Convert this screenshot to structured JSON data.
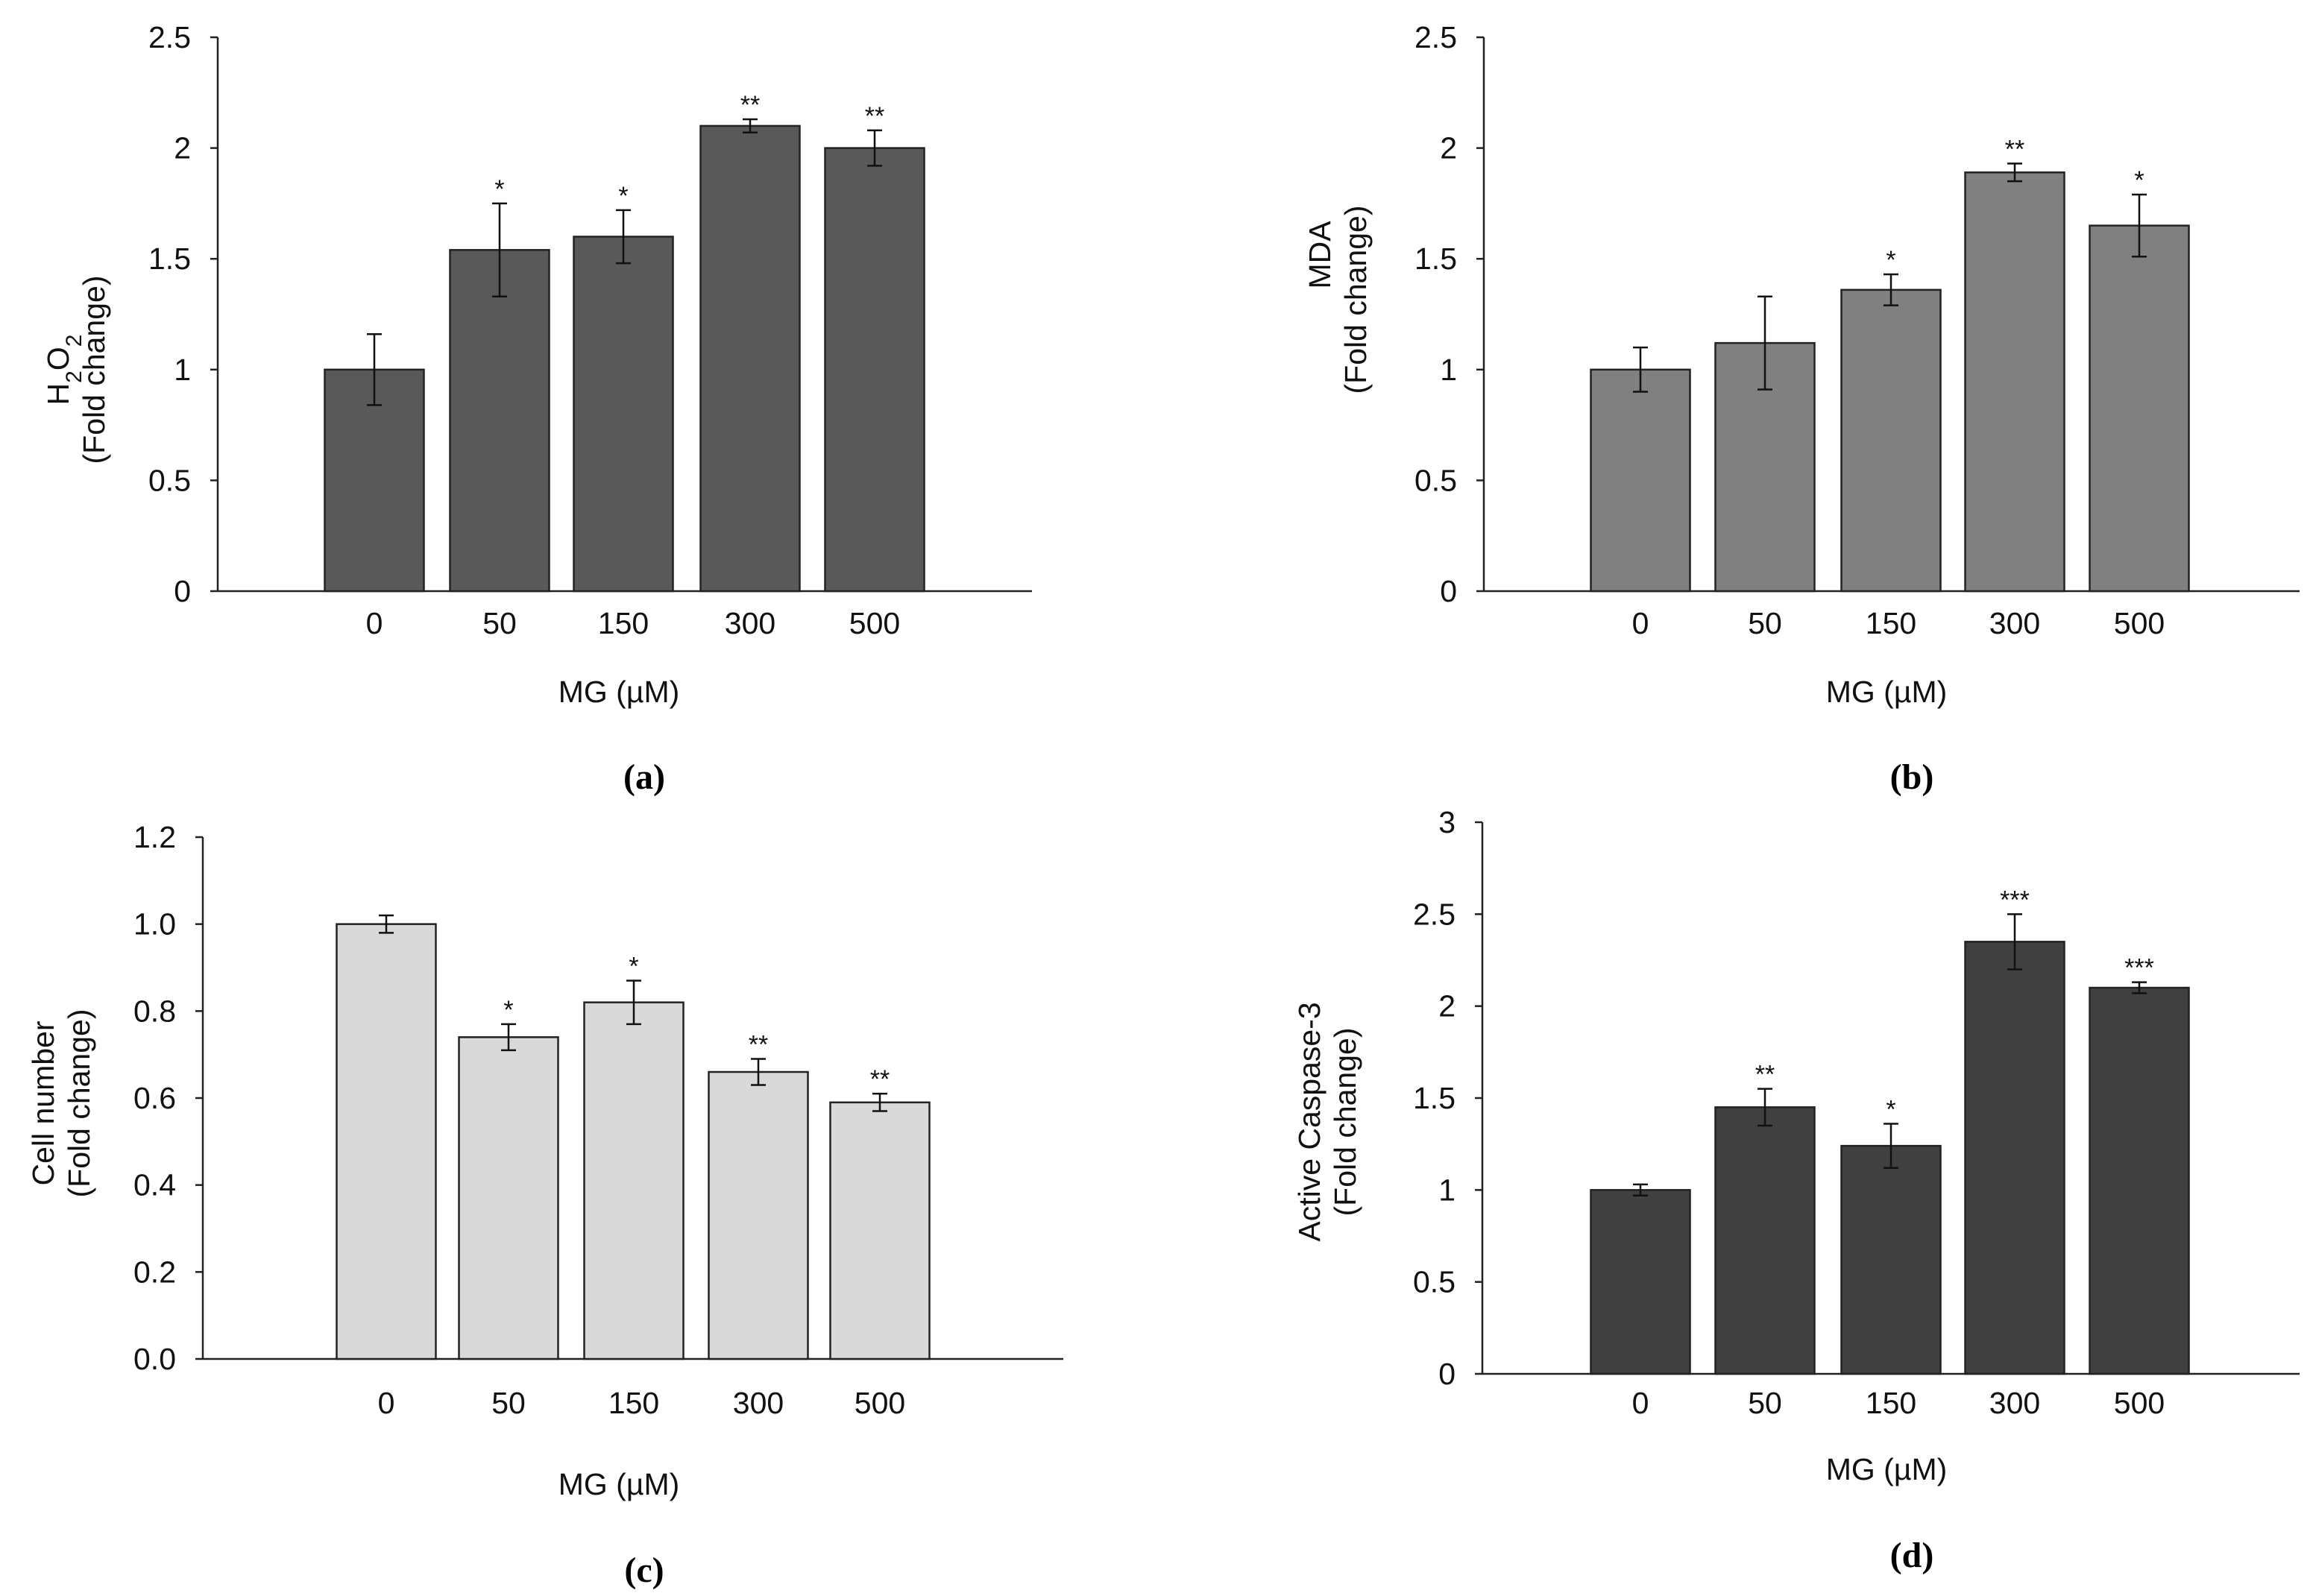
{
  "chart_data": [
    {
      "id": "a",
      "type": "bar",
      "panel_label": "(a)",
      "ylabel_main": "H",
      "ylabel_sub1": "2",
      "ylabel_mid": "O",
      "ylabel_sub2": "2",
      "ylabel_line2": "(Fold change)",
      "xlabel": "MG (µM)",
      "categories": [
        "0",
        "50",
        "150",
        "300",
        "500"
      ],
      "values": [
        1.0,
        1.54,
        1.6,
        2.1,
        2.0
      ],
      "errors": [
        0.16,
        0.21,
        0.12,
        0.03,
        0.08
      ],
      "significance": [
        "",
        "*",
        "*",
        "**",
        "**"
      ],
      "ylim": [
        0,
        2.5
      ],
      "yticks": [
        "0",
        "0.5",
        "1",
        "1.5",
        "2",
        "2.5"
      ],
      "bar_color": "#595959"
    },
    {
      "id": "b",
      "type": "bar",
      "panel_label": "(b)",
      "ylabel_line1": "MDA",
      "ylabel_line2": "(Fold change)",
      "xlabel": "MG (µM)",
      "categories": [
        "0",
        "50",
        "150",
        "300",
        "500"
      ],
      "values": [
        1.0,
        1.12,
        1.36,
        1.89,
        1.65
      ],
      "errors": [
        0.1,
        0.21,
        0.07,
        0.04,
        0.14
      ],
      "significance": [
        "",
        "",
        "*",
        "**",
        "*"
      ],
      "ylim": [
        0,
        2.5
      ],
      "yticks": [
        "0",
        "0.5",
        "1",
        "1.5",
        "2",
        "2.5"
      ],
      "bar_color": "#808080"
    },
    {
      "id": "c",
      "type": "bar",
      "panel_label": "(c)",
      "ylabel_line1": "Cell number",
      "ylabel_line2": "(Fold change)",
      "xlabel": "MG (µM)",
      "categories": [
        "0",
        "50",
        "150",
        "300",
        "500"
      ],
      "values": [
        1.0,
        0.74,
        0.82,
        0.66,
        0.59
      ],
      "errors": [
        0.02,
        0.03,
        0.05,
        0.03,
        0.02
      ],
      "significance": [
        "",
        "*",
        "*",
        "**",
        "**"
      ],
      "ylim": [
        0,
        1.2
      ],
      "yticks": [
        "0.0",
        "0.2",
        "0.4",
        "0.6",
        "0.8",
        "1.0",
        "1.2"
      ],
      "bar_color": "#d9d9d9"
    },
    {
      "id": "d",
      "type": "bar",
      "panel_label": "(d)",
      "ylabel_line1": "Active Caspase-3",
      "ylabel_line2": "(Fold change)",
      "xlabel": "MG (µM)",
      "categories": [
        "0",
        "50",
        "150",
        "300",
        "500"
      ],
      "values": [
        1.0,
        1.45,
        1.24,
        2.35,
        2.1
      ],
      "errors": [
        0.03,
        0.1,
        0.12,
        0.15,
        0.03
      ],
      "significance": [
        "",
        "**",
        "*",
        "***",
        "***"
      ],
      "ylim": [
        0,
        3
      ],
      "yticks": [
        "0",
        "0.5",
        "1",
        "1.5",
        "2",
        "2.5",
        "3"
      ],
      "bar_color": "#404040"
    }
  ]
}
